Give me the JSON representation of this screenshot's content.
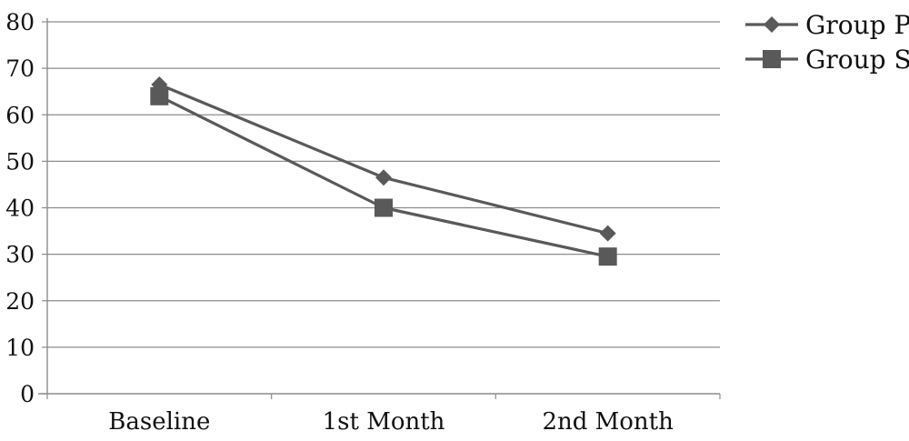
{
  "chart_data": {
    "type": "line",
    "categories": [
      "Baseline",
      "1st Month",
      "2nd Month"
    ],
    "series": [
      {
        "name": "Group P",
        "values": [
          66.5,
          46.5,
          34.5
        ],
        "marker": "diamond",
        "color": "#595959"
      },
      {
        "name": "Group S",
        "values": [
          64.0,
          40.0,
          29.5
        ],
        "marker": "square",
        "color": "#595959"
      }
    ],
    "title": "",
    "xlabel": "",
    "ylabel": "",
    "ylim": [
      0,
      80
    ],
    "yticks": [
      "0",
      "10",
      "20",
      "30",
      "40",
      "50",
      "60",
      "70",
      "80"
    ],
    "grid": true,
    "legend": "top-right"
  }
}
